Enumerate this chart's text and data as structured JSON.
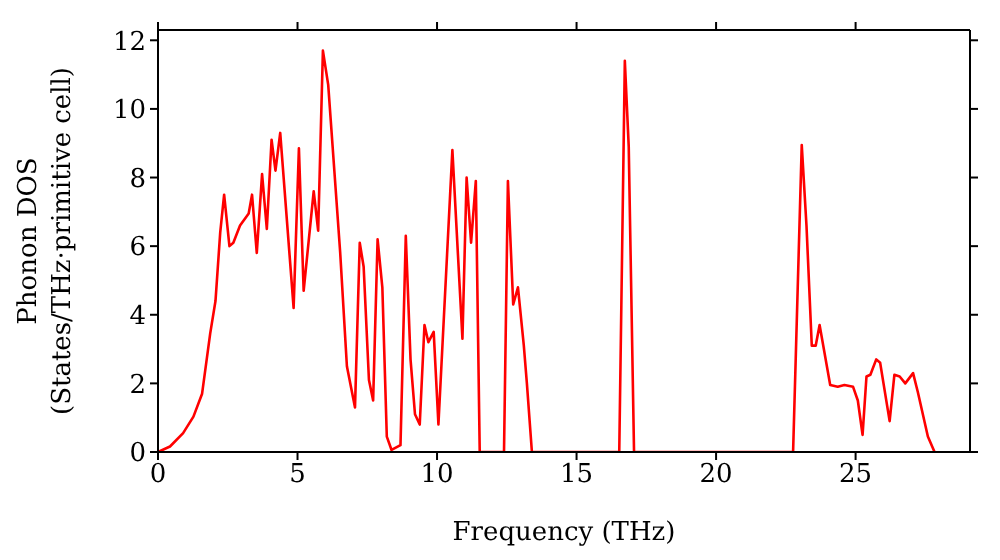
{
  "chart_data": {
    "type": "line",
    "xlabel": "Frequency (THz)",
    "ylabel": "Phonon DOS\n(States/THz·primitive cell)",
    "x": [
      0,
      0.43,
      0.9,
      1.27,
      1.58,
      1.87,
      2.06,
      2.23,
      2.37,
      2.56,
      2.7,
      2.94,
      3.25,
      3.37,
      3.54,
      3.73,
      3.9,
      4.07,
      4.21,
      4.38,
      4.86,
      5.05,
      5.22,
      5.58,
      5.74,
      5.91,
      6.1,
      6.53,
      6.77,
      7.06,
      7.23,
      7.37,
      7.56,
      7.71,
      7.87,
      8.04,
      8.2,
      8.37,
      8.69,
      8.88,
      9.05,
      9.21,
      9.38,
      9.55,
      9.69,
      9.88,
      10.05,
      10.55,
      10.91,
      11.06,
      11.22,
      11.39,
      11.53,
      12.4,
      12.54,
      12.73,
      12.9,
      13.11,
      13.22,
      13.4,
      16.53,
      16.73,
      16.87,
      17.06,
      22.76,
      23.07,
      23.24,
      23.43,
      23.57,
      23.71,
      24.09,
      24.36,
      24.6,
      24.91,
      25.08,
      25.25,
      25.39,
      25.53,
      25.74,
      25.88,
      26.22,
      26.39,
      26.58,
      26.78,
      27.06,
      27.23,
      27.59,
      27.83
    ],
    "series": [
      {
        "color": "#ff0000",
        "values": [
          0,
          0.16,
          0.55,
          1.03,
          1.7,
          3.45,
          4.4,
          6.4,
          7.5,
          6.0,
          6.1,
          6.6,
          6.95,
          7.5,
          5.8,
          8.1,
          6.5,
          9.1,
          8.2,
          9.3,
          4.2,
          8.85,
          4.7,
          7.6,
          6.45,
          11.7,
          10.7,
          5.8,
          2.5,
          1.3,
          6.1,
          5.4,
          2.1,
          1.5,
          6.2,
          4.8,
          0.45,
          0.06,
          0.2,
          6.3,
          2.7,
          1.1,
          0.8,
          3.7,
          3.2,
          3.5,
          0.8,
          8.8,
          3.3,
          8.0,
          6.1,
          7.9,
          0,
          0,
          7.9,
          4.3,
          4.8,
          3.1,
          2.0,
          0,
          0,
          11.4,
          8.9,
          0,
          0,
          8.95,
          6.6,
          3.1,
          3.1,
          3.7,
          1.95,
          1.9,
          1.95,
          1.9,
          1.5,
          0.5,
          2.2,
          2.25,
          2.7,
          2.6,
          0.9,
          2.25,
          2.2,
          2.0,
          2.3,
          1.75,
          0.45,
          0
        ]
      }
    ],
    "xlim": [
      0,
      29.1
    ],
    "ylim": [
      0,
      12.3
    ],
    "xticks": [
      0,
      5,
      10,
      15,
      20,
      25
    ],
    "yticks": [
      0,
      2,
      4,
      6,
      8,
      10,
      12
    ],
    "grid": false,
    "legend": false,
    "marker": "none",
    "line_style": "solid"
  }
}
